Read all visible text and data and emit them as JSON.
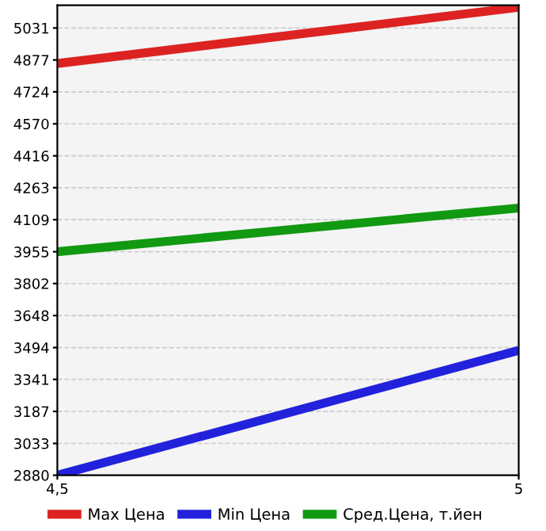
{
  "chart_data": {
    "type": "line",
    "x": [
      4.5,
      5
    ],
    "series": [
      {
        "name": "Max Цена",
        "color": "#dd2222",
        "values": [
          4860,
          5130
        ]
      },
      {
        "name": "Min Цена",
        "color": "#2222dd",
        "values": [
          2880,
          3480
        ]
      },
      {
        "name": "Сред.Цена, т.йен",
        "color": "#119911",
        "values": [
          3955,
          4165
        ]
      }
    ],
    "xlim": [
      4.5,
      5
    ],
    "xticks": [
      {
        "value": 4.5,
        "label": "4,5"
      },
      5
    ],
    "ylim": [
      2880,
      5140
    ],
    "yticks": [
      2880,
      3033,
      3187,
      3341,
      3494,
      3648,
      3802,
      3955,
      4109,
      4263,
      4416,
      4570,
      4724,
      4877,
      5031
    ],
    "grid": true,
    "legend": "bottom",
    "marker": "none",
    "line_style": "solid"
  }
}
